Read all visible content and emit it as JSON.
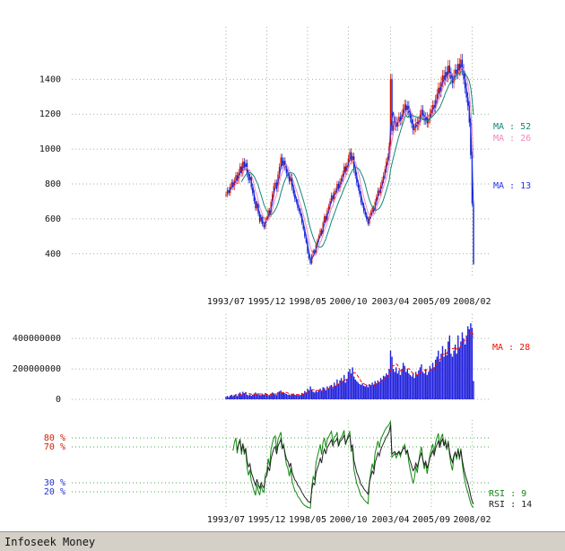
{
  "footer": {
    "text": "Infoseek Money",
    "bg_color": "#d4d0c8"
  },
  "colors": {
    "grid": "#9ab89a",
    "axis_text": "#111111",
    "background": "#ffffff"
  },
  "x_axis": {
    "tick_labels": [
      "1993/07",
      "1995/12",
      "1998/05",
      "2000/10",
      "2003/04",
      "2005/09",
      "2008/02"
    ],
    "tick_month_indices": [
      0,
      29,
      58,
      87,
      117,
      146,
      175
    ],
    "start": "1993/07",
    "end": "2008/02",
    "sampling": "monthly estimate of weekly chart"
  },
  "chart_data": [
    {
      "type": "candlestick",
      "name": "price",
      "y_ticks": [
        1400,
        1200,
        1000,
        800,
        600,
        400
      ],
      "ylim": [
        260,
        1700
      ],
      "up_color": "#cc1100",
      "down_color": "#1122cc",
      "wick_pct": 0.022,
      "close": [
        740,
        765,
        748,
        785,
        810,
        782,
        820,
        850,
        818,
        868,
        900,
        862,
        928,
        895,
        920,
        858,
        822,
        840,
        782,
        748,
        702,
        660,
        688,
        628,
        585,
        610,
        568,
        552,
        598,
        605,
        648,
        625,
        698,
        742,
        788,
        808,
        772,
        855,
        898,
        952,
        905,
        932,
        895,
        862,
        848,
        815,
        838,
        778,
        745,
        712,
        698,
        662,
        645,
        618,
        578,
        542,
        498,
        465,
        405,
        372,
        345,
        392,
        418,
        402,
        455,
        478,
        502,
        535,
        512,
        578,
        615,
        592,
        648,
        672,
        702,
        735,
        712,
        758,
        762,
        800,
        772,
        815,
        832,
        858,
        900,
        872,
        905,
        948,
        982,
        935,
        958,
        882,
        848,
        805,
        778,
        742,
        695,
        678,
        645,
        622,
        598,
        572,
        615,
        638,
        662,
        645,
        698,
        725,
        762,
        748,
        792,
        822,
        848,
        885,
        928,
        955,
        1015,
        1400,
        1105,
        1135,
        1162,
        1128,
        1155,
        1185,
        1162,
        1198,
        1232,
        1255,
        1222,
        1248,
        1205,
        1178,
        1145,
        1108,
        1122,
        1155,
        1132,
        1162,
        1198,
        1225,
        1192,
        1165,
        1185,
        1148,
        1172,
        1205,
        1225,
        1252,
        1235,
        1282,
        1315,
        1352,
        1328,
        1385,
        1422,
        1395,
        1442,
        1415,
        1478,
        1435,
        1402,
        1378,
        1425,
        1455,
        1432,
        1488,
        1452,
        1512,
        1455,
        1402,
        1348,
        1295,
        1248,
        1152,
        965,
        688,
        342
      ],
      "moving_averages": [
        {
          "label": "MA : 13",
          "window_weeks": 13,
          "color": "#2233ee"
        },
        {
          "label": "MA : 26",
          "window_weeks": 26,
          "color": "#ee88bb"
        },
        {
          "label": "MA : 52",
          "window_weeks": 52,
          "color": "#118877"
        }
      ]
    },
    {
      "type": "bar",
      "name": "volume",
      "y_ticks": [
        400000000,
        200000000,
        0
      ],
      "y_tick_labels": [
        "400000000",
        "200000000",
        "0"
      ],
      "ylim": [
        0,
        560000000
      ],
      "unit_multiplier": 1000000,
      "bar_color": "#2222dd",
      "values_millions": [
        18,
        22,
        15,
        25,
        30,
        20,
        28,
        35,
        22,
        38,
        45,
        28,
        50,
        40,
        48,
        30,
        26,
        32,
        24,
        30,
        38,
        45,
        32,
        40,
        28,
        28,
        35,
        30,
        42,
        30,
        28,
        28,
        38,
        45,
        40,
        32,
        28,
        48,
        52,
        58,
        42,
        45,
        40,
        35,
        30,
        32,
        28,
        35,
        38,
        30,
        28,
        32,
        26,
        30,
        42,
        38,
        55,
        45,
        70,
        60,
        85,
        65,
        50,
        45,
        58,
        48,
        62,
        70,
        55,
        80,
        75,
        60,
        85,
        70,
        90,
        95,
        75,
        110,
        90,
        130,
        100,
        125,
        140,
        120,
        160,
        110,
        135,
        180,
        200,
        170,
        210,
        150,
        130,
        120,
        110,
        100,
        95,
        105,
        90,
        85,
        95,
        80,
        100,
        90,
        110,
        95,
        120,
        105,
        125,
        110,
        140,
        130,
        155,
        150,
        170,
        160,
        200,
        320,
        280,
        200,
        180,
        210,
        170,
        190,
        160,
        200,
        240,
        220,
        180,
        200,
        170,
        160,
        150,
        170,
        140,
        180,
        160,
        190,
        210,
        230,
        180,
        170,
        200,
        160,
        180,
        220,
        200,
        240,
        210,
        260,
        280,
        320,
        250,
        300,
        350,
        280,
        330,
        290,
        380,
        420,
        300,
        280,
        320,
        360,
        300,
        420,
        340,
        380,
        440,
        400,
        360,
        420,
        480,
        460,
        500,
        470,
        120
      ],
      "moving_averages": [
        {
          "label": "MA : 28",
          "window_weeks": 28,
          "color": "#ee1100"
        }
      ]
    },
    {
      "type": "line",
      "name": "rsi",
      "ylim": [
        0,
        100
      ],
      "series": [
        {
          "label": "RSI : 9",
          "period_weeks": 9,
          "color": "#118811"
        },
        {
          "label": "RSI : 14",
          "period_weeks": 14,
          "color": "#222222"
        }
      ],
      "ref_lines": [
        {
          "label": "80 %",
          "value": 80,
          "label_color": "#cc2200"
        },
        {
          "label": "70 %",
          "value": 70,
          "label_color": "#cc2200"
        },
        {
          "label": "30 %",
          "value": 30,
          "label_color": "#2233cc"
        },
        {
          "label": "20 %",
          "value": 20,
          "label_color": "#2233cc"
        }
      ],
      "ref_line_color": "#44aa44"
    }
  ]
}
